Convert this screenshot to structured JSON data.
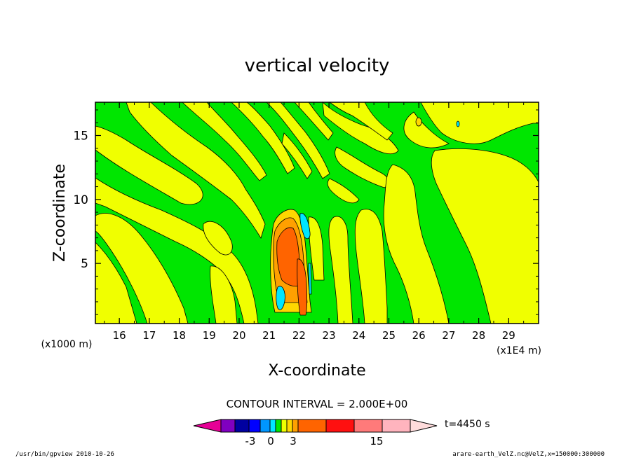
{
  "chart_data": {
    "type": "heatmap",
    "title": "vertical velocity",
    "xlabel": "X-coordinate",
    "ylabel": "Z-coordinate",
    "x_unit_left": "(x1000 m)",
    "x_unit_right": "(x1E4 m)",
    "x_ticks": [
      "16",
      "17",
      "18",
      "19",
      "20",
      "21",
      "22",
      "23",
      "24",
      "25",
      "26",
      "27",
      "28",
      "29"
    ],
    "y_ticks": [
      "5",
      "10",
      "15"
    ],
    "xlim": [
      15.2,
      30.0
    ],
    "ylim": [
      0.3,
      17.6
    ],
    "contour_interval_text": "CONTOUR INTERVAL = 2.000E+00",
    "time_label": "t=4450 s",
    "footer_left": "/usr/bin/gpview   2010-10-26",
    "footer_right": "arare-earth_VelZ.nc@VelZ,x=150000:300000",
    "colorbar": {
      "labels": [
        "-3",
        "0",
        "3",
        "15"
      ],
      "colors": [
        "#e60096",
        "#8000c0",
        "#0000a0",
        "#0000ff",
        "#0096ff",
        "#00e6ff",
        "#00e600",
        "#f0ff00",
        "#ffd700",
        "#ffa000",
        "#ff6400",
        "#ff1010",
        "#ff7a7a",
        "#ffb4be",
        "#ffdcdc"
      ]
    },
    "field_colors": {
      "positive_weak": "#f0ff00",
      "negative_weak": "#00e600",
      "level_3": "#ffd700",
      "level_5": "#ffa000",
      "level_7": "#ff6400",
      "negative_strong": "#00e6ff"
    }
  }
}
